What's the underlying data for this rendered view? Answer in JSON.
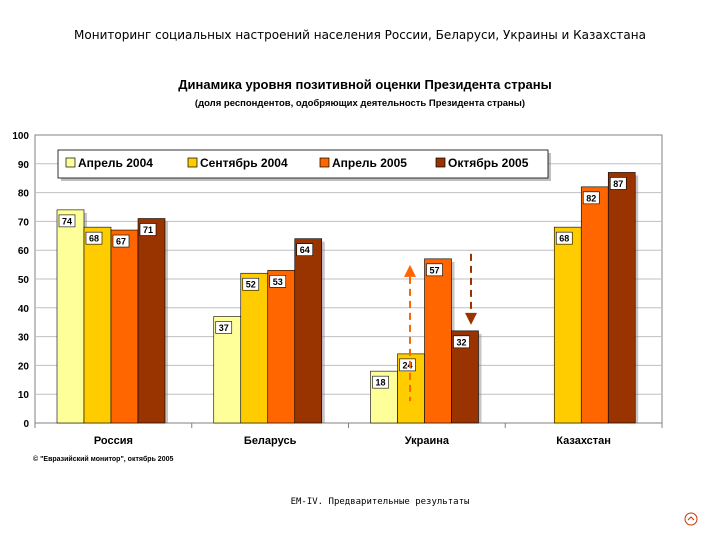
{
  "slide": {
    "title": "Мониторинг социальных настроений населения России, Беларуси, Украины и Казахстана",
    "footer": "EM-IV. Предварительные результаты"
  },
  "colors": {
    "series": [
      "#ffff99",
      "#ffcc00",
      "#ff6600",
      "#993300"
    ],
    "arrow_up": "#ff6600",
    "arrow_down": "#993300",
    "plot_bg": "#ffffff",
    "grid": "#c0c0c0"
  },
  "chart_data": {
    "type": "bar",
    "title": "Динамика уровня позитивной оценки Президента страны",
    "subtitle": "(доля респондентов, одобряющих деятельность Президента страны)",
    "categories": [
      "Россия",
      "Беларусь",
      "Украина",
      "Казахстан"
    ],
    "series": [
      {
        "name": "Апрель 2004",
        "values": [
          74,
          37,
          18,
          null
        ]
      },
      {
        "name": "Сентябрь 2004",
        "values": [
          68,
          52,
          24,
          68
        ]
      },
      {
        "name": "Апрель 2005",
        "values": [
          67,
          53,
          57,
          82
        ]
      },
      {
        "name": "Октябрь 2005",
        "values": [
          71,
          64,
          32,
          87
        ]
      }
    ],
    "data_labels": [
      [
        "74",
        "68",
        "67",
        "71"
      ],
      [
        "37",
        "52",
        "53",
        "64"
      ],
      [
        "18",
        "24",
        "57",
        "32"
      ],
      [
        "",
        "68",
        "82",
        "87"
      ]
    ],
    "yticks": [
      "0",
      "10",
      "20",
      "30",
      "40",
      "50",
      "60",
      "70",
      "80",
      "90",
      "100"
    ],
    "ylim": [
      0,
      100
    ],
    "grid": true,
    "legend_position": "top",
    "copyright": "© \"Евразийский монитор\", октябрь 2005"
  }
}
